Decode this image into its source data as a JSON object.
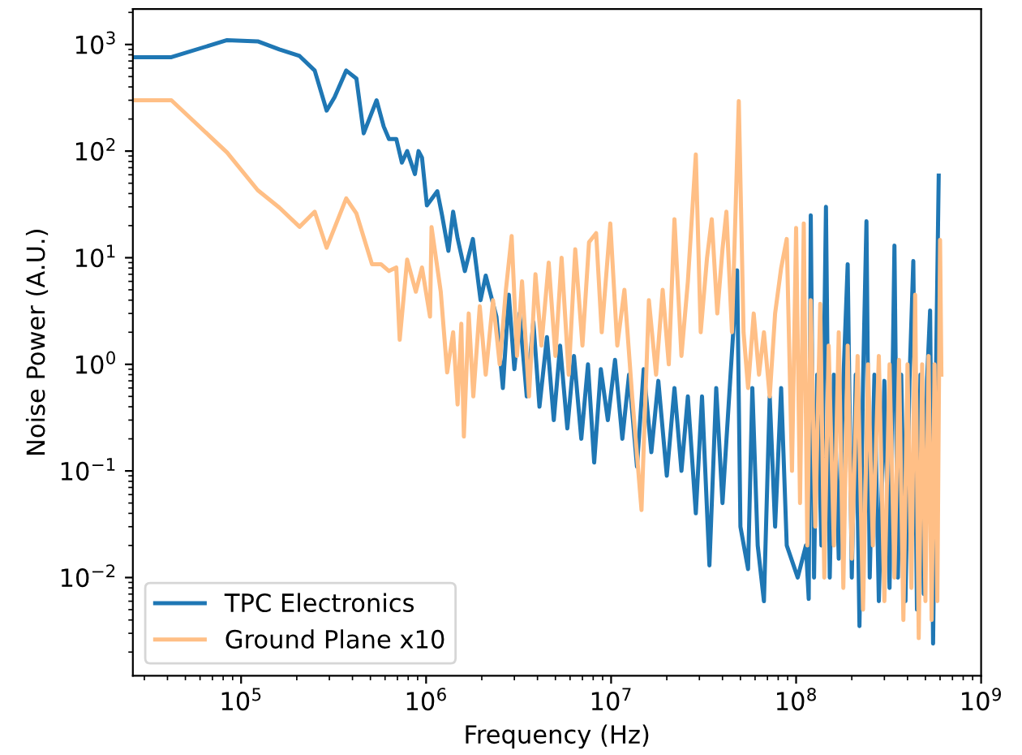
{
  "chart_data": {
    "type": "line",
    "xlabel": "Frequency (Hz)",
    "ylabel": "Noise Power (A.U.)",
    "log": "xy",
    "grid": false,
    "legend": "bottom left",
    "line_style": "solid",
    "marker": "none",
    "xlim": [
      26000,
      1000000000
    ],
    "ylim": [
      0.0012,
      2150
    ],
    "xticks": [
      {
        "value": 100000,
        "label": "10$^{5}$"
      },
      {
        "value": 1000000,
        "label": "10$^{6}$"
      },
      {
        "value": 10000000,
        "label": "10$^{7}$"
      },
      {
        "value": 100000000,
        "label": "10$^{8}$"
      },
      {
        "value": 1000000000,
        "label": "10$^{9}$"
      }
    ],
    "yticks": [
      {
        "value": 0.01,
        "label": "10$^{−2}$"
      },
      {
        "value": 0.1,
        "label": "10$^{−1}$"
      },
      {
        "value": 1,
        "label": "10$^{0}$"
      },
      {
        "value": 10,
        "label": "10$^{1}$"
      },
      {
        "value": 100,
        "label": "10$^{2}$"
      },
      {
        "value": 1000,
        "label": "10$^{3}$"
      }
    ],
    "series": [
      {
        "name": "TPC Electronics",
        "color": "#1f77b4",
        "x": [
          26000,
          42000,
          84000,
          123000,
          161000,
          207000,
          250000,
          290000,
          320000,
          370000,
          420000,
          460000,
          540000,
          590000,
          630000,
          690000,
          740000,
          790000,
          870000,
          910000,
          950000,
          1010000,
          1150000,
          1220000,
          1320000,
          1400000,
          1480000,
          1620000,
          1790000,
          1970000,
          2100000,
          2400000,
          2600000,
          2800000,
          3000000,
          3200000,
          3500000,
          3800000,
          4100000,
          4500000,
          4900000,
          5300000,
          5800000,
          6300000,
          6900000,
          7500000,
          8100000,
          8800000,
          9600000,
          10500000,
          11500000,
          12500000,
          13800000,
          15000000,
          16500000,
          18000000,
          20000000,
          22000000,
          24000000,
          26000000,
          28700000,
          31000000,
          34000000,
          37000000,
          40000000,
          44000000,
          48000000,
          50000000,
          55000000,
          58000000,
          62000000,
          67000000,
          72000000,
          77000000,
          83000000,
          89000000,
          102000000,
          113000000,
          117000000,
          120000000,
          125000000,
          130000000,
          137000000,
          145000000,
          152000000,
          160000000,
          170000000,
          180000000,
          190000000,
          200000000,
          210000000,
          220000000,
          230000000,
          240000000,
          250000000,
          265000000,
          280000000,
          300000000,
          320000000,
          340000000,
          355000000,
          370000000,
          390000000,
          410000000,
          430000000,
          450000000,
          470000000,
          490000000,
          510000000,
          530000000,
          550000000,
          570000000,
          590000000
        ],
        "values": [
          760,
          760,
          1100,
          1070,
          900,
          780,
          570,
          240,
          320,
          570,
          480,
          147,
          300,
          170,
          130,
          130,
          78,
          100,
          61,
          100,
          87,
          31,
          42,
          25,
          11.6,
          27,
          15.2,
          7.5,
          15,
          4.0,
          6.8,
          2.8,
          0.6,
          4.5,
          0.9,
          3.0,
          0.5,
          2.5,
          0.4,
          1.8,
          0.3,
          1.5,
          0.25,
          1.2,
          0.2,
          1.0,
          0.12,
          0.9,
          0.3,
          1.1,
          0.2,
          0.8,
          0.11,
          0.9,
          0.15,
          0.7,
          0.09,
          0.6,
          0.1,
          0.5,
          0.04,
          0.5,
          0.013,
          0.6,
          0.05,
          0.7,
          7.6,
          0.03,
          0.012,
          0.6,
          0.02,
          0.006,
          0.5,
          0.03,
          0.6,
          0.02,
          0.01,
          0.02,
          0.0063,
          25,
          0.01,
          0.8,
          0.02,
          30,
          0.01,
          0.8,
          0.015,
          0.7,
          8.7,
          0.01,
          0.8,
          0.0035,
          0.7,
          22,
          0.01,
          0.8,
          0.006,
          0.7,
          0.008,
          13,
          0.01,
          0.8,
          0.006,
          0.7,
          9.3,
          0.005,
          0.8,
          0.007,
          0.7,
          3.2,
          0.0024,
          0.8,
          59
        ]
      },
      {
        "name": "Ground Plane x10",
        "color": "#ffbf86",
        "x": [
          26000,
          42000,
          84000,
          123000,
          161000,
          207000,
          250000,
          290000,
          370000,
          420000,
          510000,
          570000,
          630000,
          690000,
          720000,
          790000,
          880000,
          950000,
          1050000,
          1070000,
          1200000,
          1300000,
          1400000,
          1480000,
          1550000,
          1600000,
          1700000,
          1800000,
          1950000,
          2100000,
          2300000,
          2500000,
          2700000,
          2900000,
          3100000,
          3300000,
          3600000,
          3900000,
          4200000,
          4600000,
          5000000,
          5400000,
          5900000,
          6400000,
          7000000,
          7600000,
          8300000,
          8900000,
          9900000,
          10800000,
          11800000,
          13000000,
          14600000,
          16000000,
          17500000,
          19000000,
          20500000,
          22000000,
          24000000,
          26000000,
          28700000,
          30500000,
          33000000,
          35000000,
          37500000,
          40000000,
          42000000,
          45000000,
          49000000,
          52000000,
          55000000,
          59000000,
          63000000,
          67000000,
          72000000,
          77000000,
          83000000,
          89000000,
          95000000,
          100000000,
          105000000,
          110000000,
          115000000,
          120000000,
          127000000,
          135000000,
          142000000,
          150000000,
          160000000,
          170000000,
          180000000,
          190000000,
          200000000,
          215000000,
          230000000,
          245000000,
          260000000,
          280000000,
          300000000,
          320000000,
          340000000,
          360000000,
          380000000,
          400000000,
          420000000,
          440000000,
          460000000,
          480000000,
          500000000,
          520000000,
          540000000,
          560000000,
          580000000,
          600000000,
          610000000
        ],
        "values": [
          300,
          300,
          97,
          43,
          29.5,
          19.5,
          27,
          12.4,
          36,
          26,
          8.7,
          8.7,
          7.5,
          8.1,
          1.7,
          9.6,
          4.8,
          8.1,
          2.8,
          19.4,
          4.8,
          0.84,
          2.0,
          0.42,
          2.4,
          0.21,
          3,
          0.5,
          3.5,
          0.8,
          4,
          1.0,
          5,
          16,
          1.2,
          6,
          0.5,
          7,
          1.5,
          9,
          1.2,
          10,
          0.8,
          12,
          1.5,
          14,
          17,
          2,
          21,
          1.5,
          5,
          0.5,
          0.043,
          4,
          0.8,
          5,
          1,
          23,
          1.2,
          6,
          93,
          2,
          10,
          23,
          3,
          12,
          27,
          2,
          295,
          2,
          0.6,
          3,
          0.8,
          2,
          0.5,
          3,
          8,
          15,
          0.1,
          19,
          0.05,
          21,
          0.02,
          4,
          0.03,
          3.7,
          0.01,
          1.5,
          0.02,
          2,
          0.008,
          1.5,
          0.015,
          1.2,
          0.005,
          1.0,
          0.02,
          1.2,
          0.006,
          1.0,
          0.01,
          1.1,
          0.004,
          1.0,
          0.008,
          4.5,
          0.0027,
          1.0,
          0.006,
          1.2,
          0.004,
          1.0,
          0.006,
          14.7,
          0.8
        ]
      }
    ]
  }
}
